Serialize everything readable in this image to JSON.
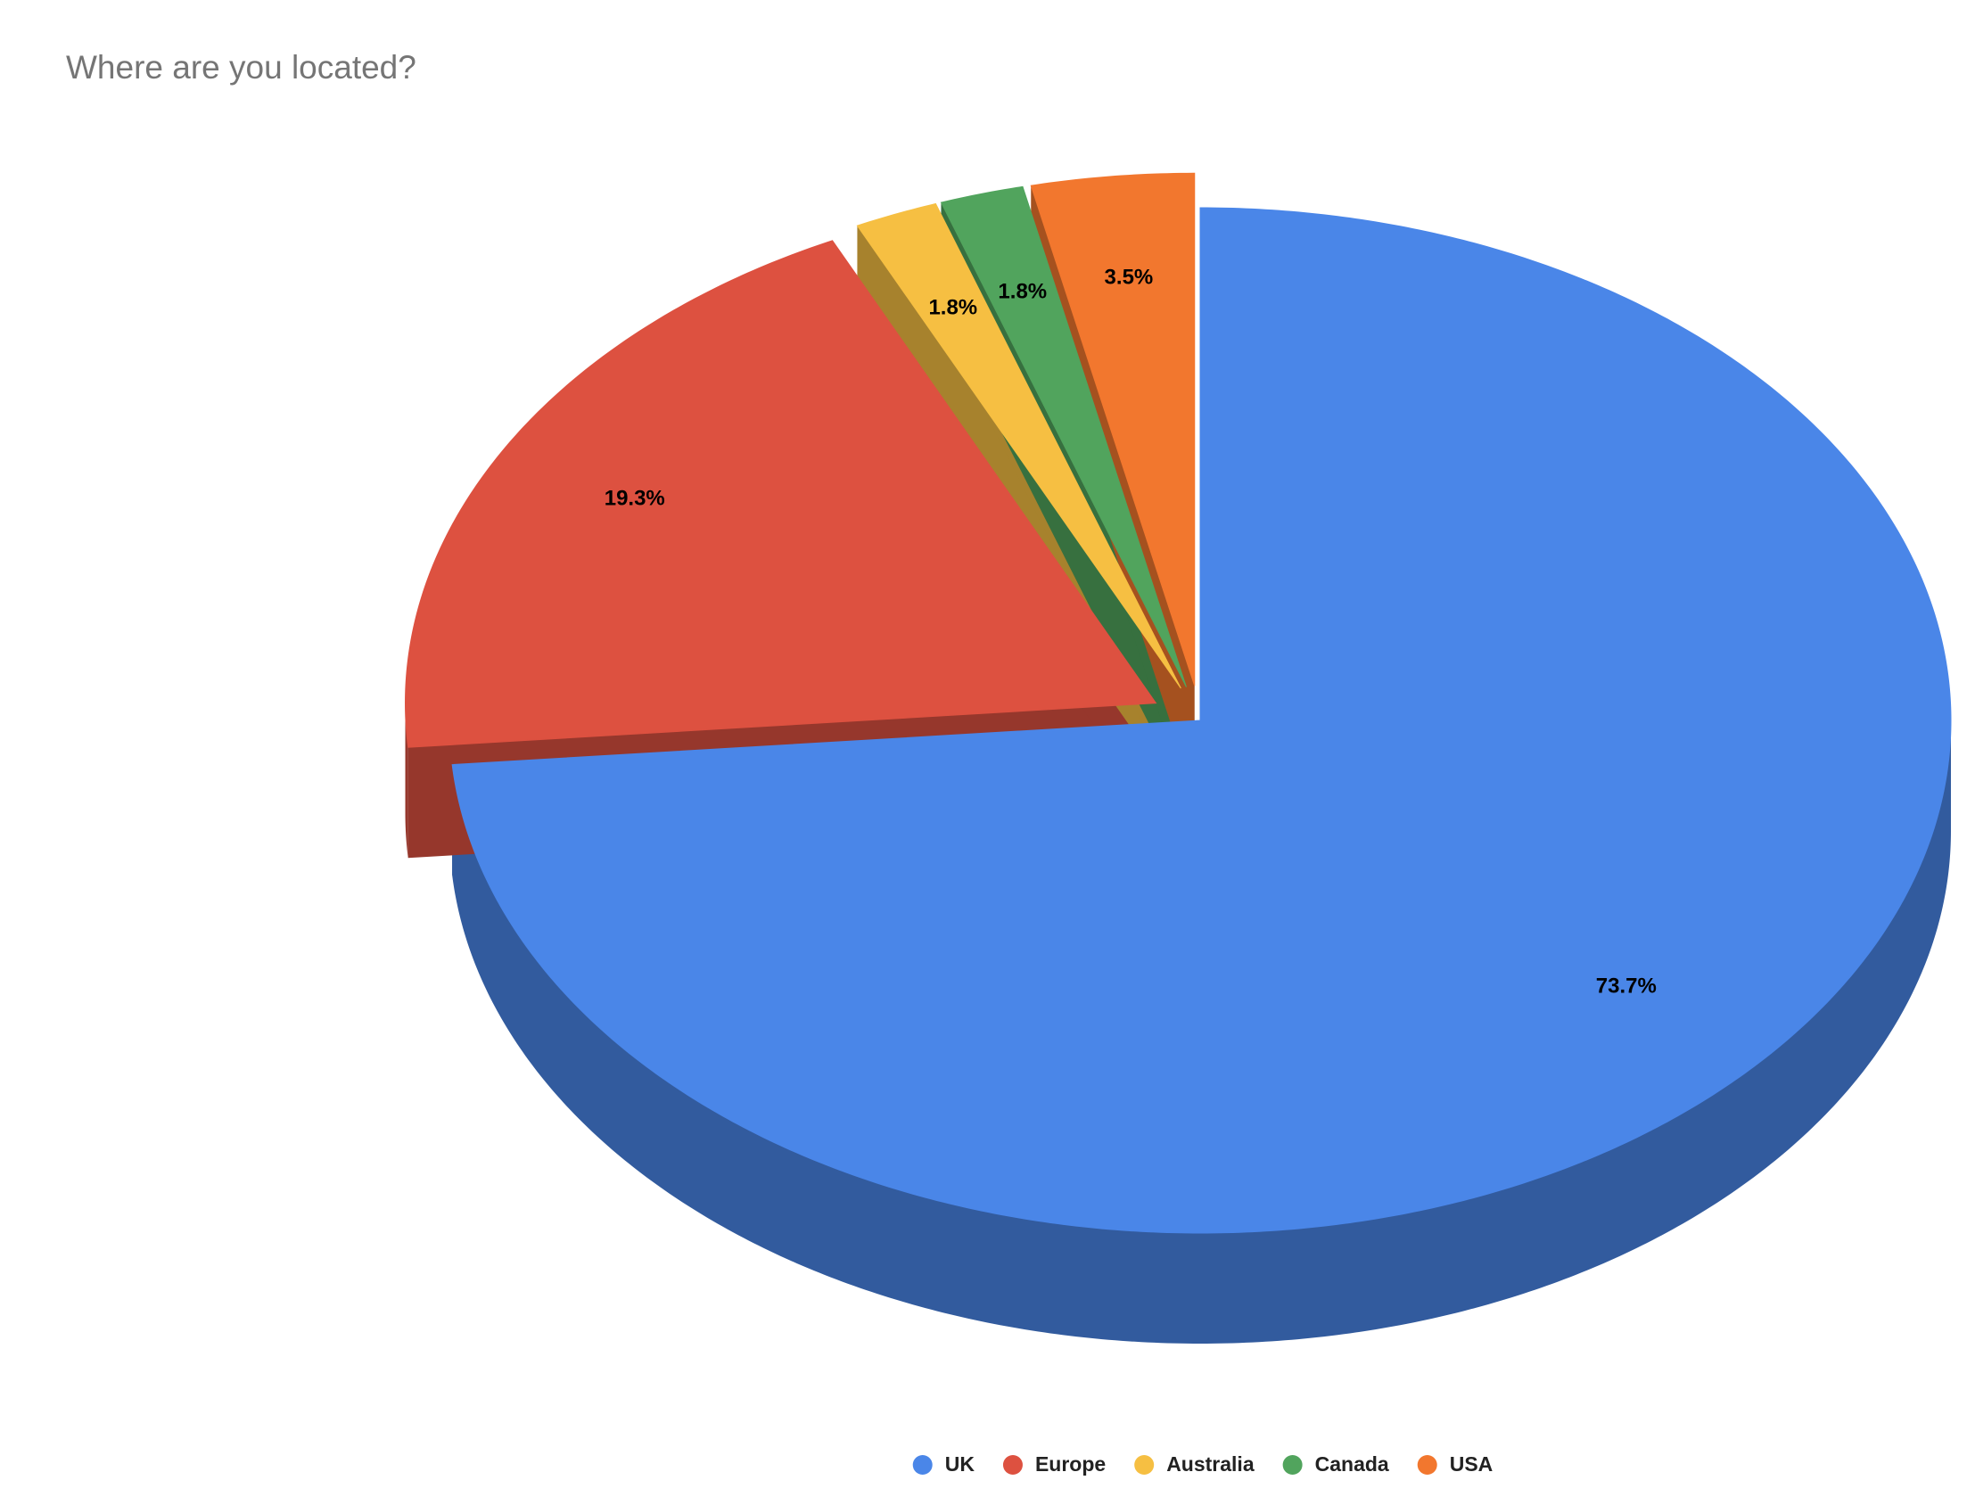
{
  "chart_data": {
    "type": "pie",
    "title": "Where are you located?",
    "categories": [
      "UK",
      "Europe",
      "Australia",
      "Canada",
      "USA"
    ],
    "values": [
      73.7,
      19.3,
      1.8,
      1.8,
      3.5
    ],
    "value_labels": [
      "73.7%",
      "19.3%",
      "1.8%",
      "1.8%",
      "3.5%"
    ],
    "colors": [
      "#4a86e8",
      "#dd5140",
      "#f6bf42",
      "#51a45d",
      "#f2772e"
    ],
    "legend": "bottom"
  }
}
